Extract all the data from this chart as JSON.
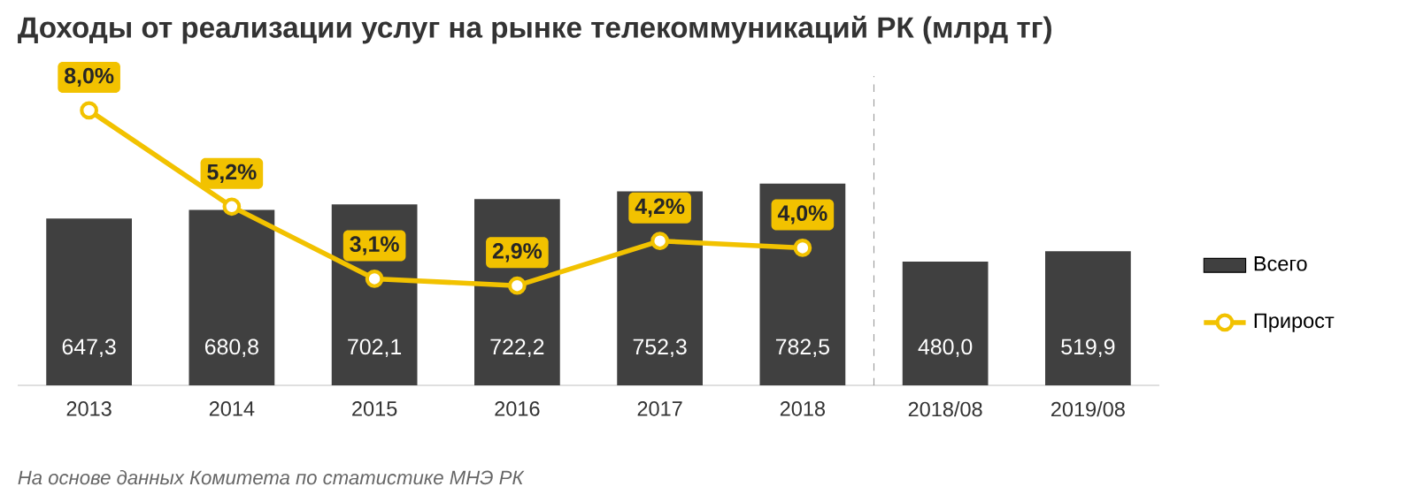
{
  "chart_data": {
    "type": "bar",
    "title": "Доходы от реализации услуг на рынке телекоммуникаций РК (млрд тг)",
    "annotations": [
      "На основе данных Комитета по статистике МНЭ РК"
    ],
    "categories": [
      "2013",
      "2014",
      "2015",
      "2016",
      "2017",
      "2018",
      "2018/08",
      "2019/08"
    ],
    "series": [
      {
        "name": "Всего",
        "color": "#404040",
        "values": [
          647.3,
          680.8,
          702.1,
          722.2,
          752.3,
          782.5,
          480.0,
          519.9
        ],
        "value_labels": [
          "647,3",
          "680,8",
          "702,1",
          "722,2",
          "752,3",
          "782,5",
          "480,0",
          "519,9"
        ]
      },
      {
        "name": "Прирост",
        "type": "line",
        "axis": "y2",
        "color": "#f2c200",
        "marker": "circle",
        "values": [
          8.0,
          5.2,
          3.1,
          2.9,
          4.2,
          4.0,
          null,
          null
        ],
        "value_labels": [
          "8,0%",
          "5,2%",
          "3,1%",
          "2,9%",
          "4,2%",
          "4,0%",
          null,
          null
        ]
      }
    ],
    "ylim": [
      0,
      1200
    ],
    "y2lim": [
      0,
      9
    ],
    "tick_labels": "x",
    "legend": "right"
  }
}
